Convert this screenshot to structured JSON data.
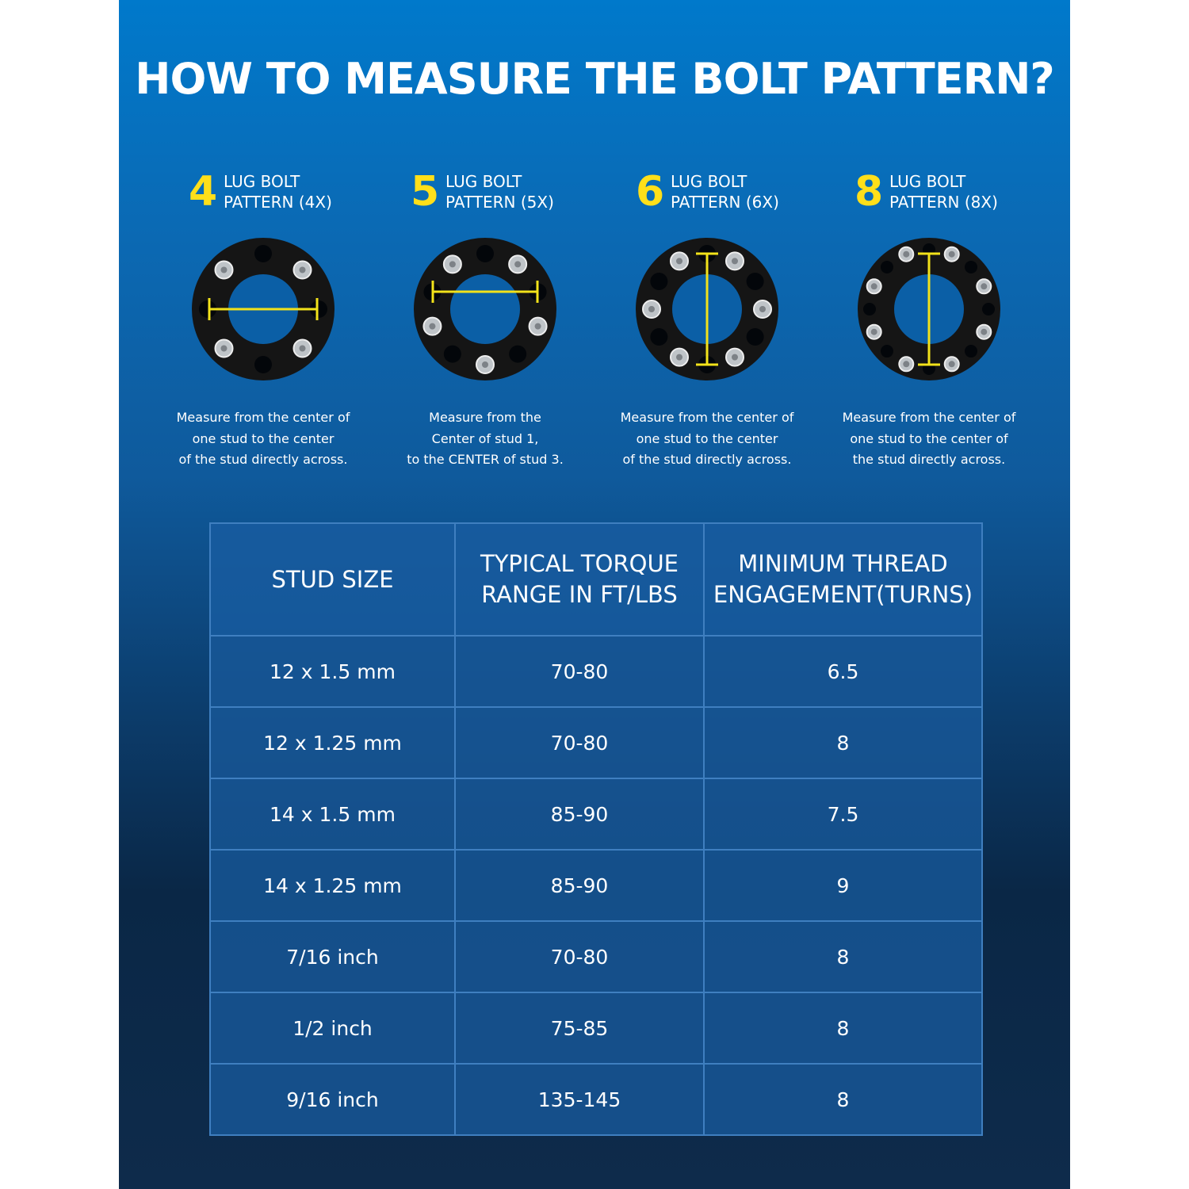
{
  "title": "HOW TO MEASURE THE BOLT PATTERN?",
  "colors": {
    "accent": "#ffdf1a",
    "panel_top": "#0079cb",
    "panel_bottom": "#0e2b4b"
  },
  "patterns": [
    {
      "number": "4",
      "label": "LUG BOLT\nPATTERN (4X)",
      "lugs": 4,
      "measure": "horizontal",
      "description": "Measure from the center of\none stud to the center\nof the stud directly across."
    },
    {
      "number": "5",
      "label": "LUG BOLT\nPATTERN (5X)",
      "lugs": 5,
      "measure": "horizontal",
      "description": "Measure from the\nCenter of stud 1,\nto the CENTER  of stud 3."
    },
    {
      "number": "6",
      "label": "LUG BOLT\nPATTERN (6X)",
      "lugs": 6,
      "measure": "vertical",
      "description": "Measure from the center of\none stud to the center\nof the stud directly across."
    },
    {
      "number": "8",
      "label": "LUG BOLT\nPATTERN (8X)",
      "lugs": 8,
      "measure": "vertical",
      "description": "Measure from the center of\none stud to the center of\nthe stud directly across."
    }
  ],
  "table": {
    "headers": [
      "STUD SIZE",
      "TYPICAL TORQUE\nRANGE IN FT/LBS",
      "MINIMUM THREAD\nENGAGEMENT(TURNS)"
    ],
    "rows": [
      [
        "12 x 1.5 mm",
        "70-80",
        "6.5"
      ],
      [
        "12 x 1.25 mm",
        "70-80",
        "8"
      ],
      [
        "14 x 1.5 mm",
        "85-90",
        "7.5"
      ],
      [
        "14 x 1.25 mm",
        "85-90",
        "9"
      ],
      [
        "7/16 inch",
        "70-80",
        "8"
      ],
      [
        "1/2 inch",
        "75-85",
        "8"
      ],
      [
        "9/16 inch",
        "135-145",
        "8"
      ]
    ]
  }
}
